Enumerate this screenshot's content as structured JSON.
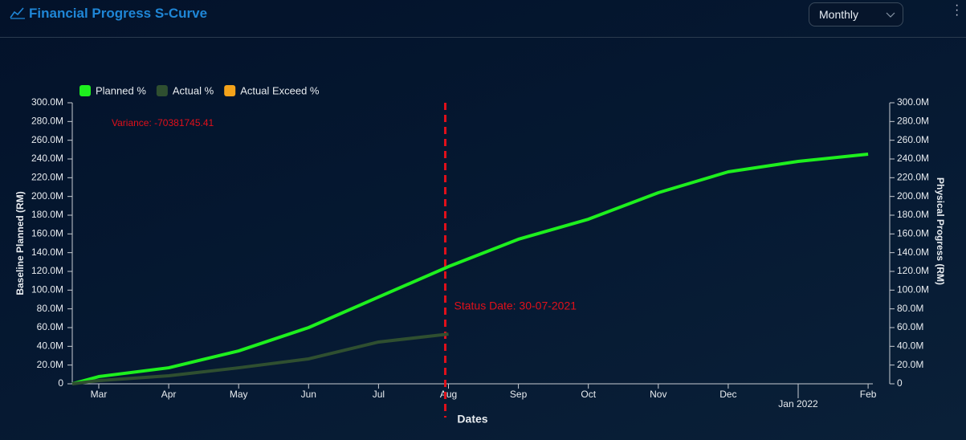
{
  "header": {
    "title": "Financial Progress S-Curve"
  },
  "controls": {
    "period": "Monthly"
  },
  "chart_data": {
    "type": "line",
    "categories": [
      null,
      "Mar",
      "Apr",
      "May",
      "Jun",
      "Jul",
      "Aug",
      "Sep",
      "Oct",
      "Nov",
      "Dec",
      "Jan 2022",
      "Feb"
    ],
    "series": [
      {
        "name": "Planned %",
        "color": "#1ef01e",
        "values": [
          0,
          7700000,
          17100000,
          35100000,
          60000000,
          92600000,
          125100000,
          154300000,
          175700000,
          204000000,
          226300000,
          237400000,
          245100000
        ]
      },
      {
        "name": "Actual %",
        "color": "#2f4f30",
        "values": [
          0,
          3400000,
          8600000,
          17100000,
          26600000,
          44600000,
          53100000,
          null,
          null,
          null,
          null,
          null,
          null
        ]
      },
      {
        "name": "Actual Exceed %",
        "color": "#f5a31a",
        "values": [
          null,
          null,
          null,
          null,
          null,
          null,
          null,
          null,
          null,
          null,
          null,
          null,
          null
        ]
      }
    ],
    "x_label": "Dates",
    "y_label": "Baseline Planned (RM)",
    "y2_label": "Physical Progress (RM)",
    "ylim": [
      0,
      300000000
    ],
    "y2lim": [
      0,
      300000000
    ],
    "yticks": [
      0,
      {
        "value": 20000000,
        "label": "20.0M"
      },
      {
        "value": 40000000,
        "label": "40.0M"
      },
      {
        "value": 60000000,
        "label": "60.0M"
      },
      {
        "value": 80000000,
        "label": "80.0M"
      },
      {
        "value": 100000000,
        "label": "100.0M"
      },
      {
        "value": 120000000,
        "label": "120.0M"
      },
      {
        "value": 140000000,
        "label": "140.0M"
      },
      {
        "value": 160000000,
        "label": "160.0M"
      },
      {
        "value": 180000000,
        "label": "180.0M"
      },
      {
        "value": 200000000,
        "label": "200.0M"
      },
      {
        "value": 220000000,
        "label": "220.0M"
      },
      {
        "value": 240000000,
        "label": "240.0M"
      },
      {
        "value": 260000000,
        "label": "260.0M"
      },
      {
        "value": 280000000,
        "label": "280.0M"
      },
      {
        "value": 300000000,
        "label": "300.0M"
      }
    ],
    "y2ticks": [
      0,
      {
        "value": 20000000,
        "label": "20.0M"
      },
      {
        "value": 40000000,
        "label": "40.0M"
      },
      {
        "value": 60000000,
        "label": "60.0M"
      },
      {
        "value": 80000000,
        "label": "80.0M"
      },
      {
        "value": 100000000,
        "label": "100.0M"
      },
      {
        "value": 120000000,
        "label": "120.0M"
      },
      {
        "value": 140000000,
        "label": "140.0M"
      },
      {
        "value": 160000000,
        "label": "160.0M"
      },
      {
        "value": 180000000,
        "label": "180.0M"
      },
      {
        "value": 200000000,
        "label": "200.0M"
      },
      {
        "value": 220000000,
        "label": "220.0M"
      },
      {
        "value": 240000000,
        "label": "240.0M"
      },
      {
        "value": 260000000,
        "label": "260.0M"
      },
      {
        "value": 280000000,
        "label": "280.0M"
      },
      {
        "value": 300000000,
        "label": "300.0M"
      }
    ],
    "annotations": {
      "variance": "Variance: -70381745.41",
      "status_date": "Status Date: 30-07-2021"
    },
    "status_line_color": "#e0101a"
  }
}
